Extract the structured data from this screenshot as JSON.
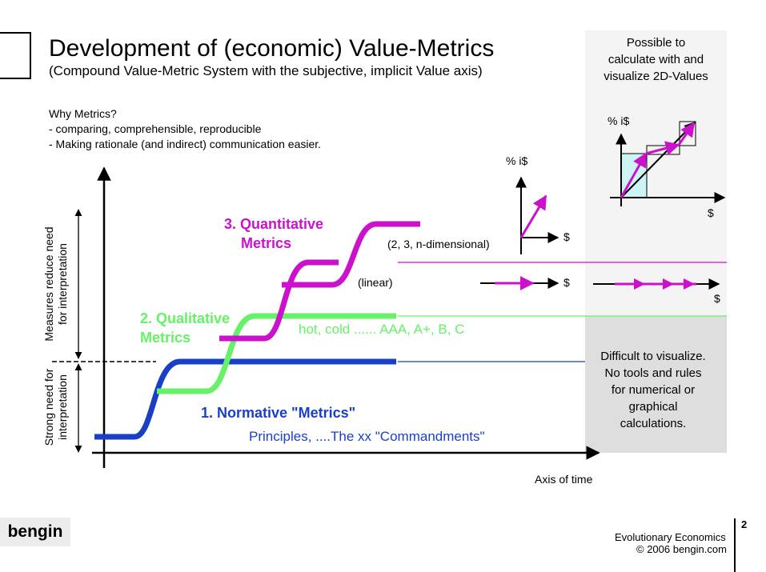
{
  "header": {
    "title": "Development of (economic) Value-Metrics",
    "subtitle": "(Compound Value-Metric System with the subjective, implicit Value axis)"
  },
  "why": {
    "heading": "Why Metrics?",
    "points": [
      "- comparing, comprehensible, reproducible",
      "- Making rationale (and indirect) communication easier."
    ]
  },
  "panels": {
    "top_lines": [
      "Possible to",
      "calculate with and",
      "visualize 2D-Values"
    ],
    "bottom_lines": [
      "Difficult to visualize.",
      "No tools and rules",
      "for numerical or",
      "graphical",
      "calculations."
    ]
  },
  "axes": {
    "y_upper_lines": [
      "Measures reduce need",
      "for interpretation"
    ],
    "y_lower_lines": [
      "Strong need for",
      "interpretation"
    ],
    "x_label": "Axis of time"
  },
  "stages": {
    "normative": {
      "title": "1. Normative \"Metrics\"",
      "example": "Principles, ....The xx \"Commandments\"",
      "color": "#1a3fc7"
    },
    "qualitative": {
      "title_lines": [
        "2. Qualitative",
        "Metrics"
      ],
      "example": "hot, cold ...... AAA, A+, B, C",
      "color": "#66f266"
    },
    "quantitative": {
      "title_lines": [
        "3. Quantitative",
        "Metrics"
      ],
      "dims": "(2, 3, n-dimensional)",
      "linear": "(linear)",
      "color": "#cc11cc"
    }
  },
  "mini_axes": {
    "y_label": "%  i$",
    "x_label": "$"
  },
  "footer": {
    "brand": "bengin",
    "org": "Evolutionary Economics",
    "copyright": "© 2006 bengin.com",
    "page_number": "2"
  }
}
